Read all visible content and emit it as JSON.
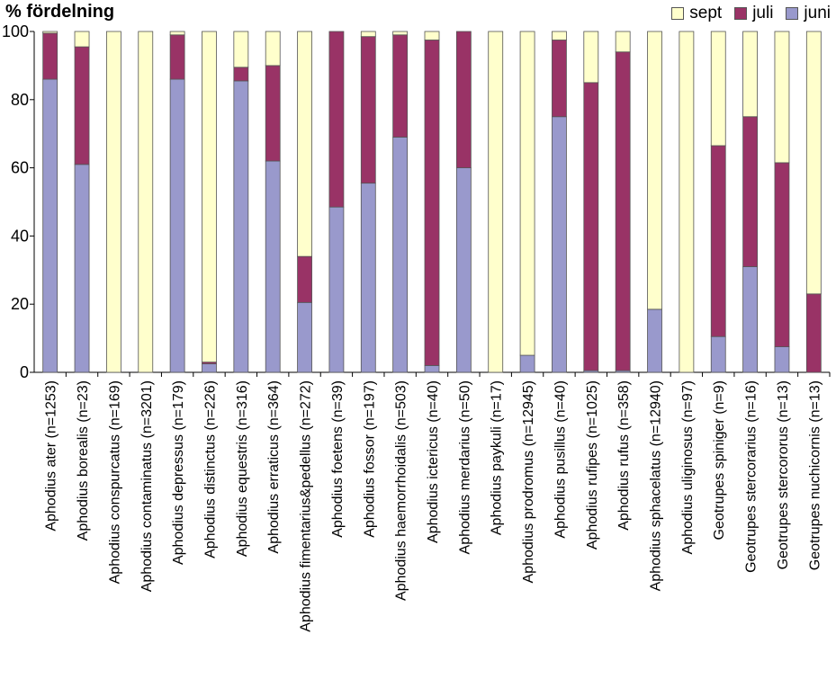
{
  "chart_data": {
    "type": "bar",
    "stacked": true,
    "ylabel": "% fördelning",
    "ylim": [
      0,
      100
    ],
    "yticks": [
      0,
      20,
      40,
      60,
      80,
      100
    ],
    "grid": false,
    "legend_position": "top-right",
    "categories": [
      "Aphodius ater (n=1253)",
      "Aphodius borealis (n=23)",
      "Aphodius conspurcatus (n=169)",
      "Aphodius contaminatus (n=3201)",
      "Aphodius depressus (n=179)",
      "Aphodius distinctus (n=226)",
      "Aphodius equestris (n=316)",
      "Aphodius erraticus (n=364)",
      "Aphodius fimentarius&pedellus (n=272)",
      "Aphodius foetens (n=39)",
      "Aphodius fossor (n=197)",
      "Aphodius haemorrhoidalis (n=503)",
      "Aphodius ictericus (n=40)",
      "Aphodius merdarius (n=50)",
      "Aphodius paykuli (n=17)",
      "Aphodius prodromus (n=12945)",
      "Aphodius pusillus (n=40)",
      "Aphodius rufipes (n=1025)",
      "Aphodius rufus (n=358)",
      "Aphodius sphacelatus (n=12940)",
      "Aphodius uliginosus (n=97)",
      "Geotrupes spiniger (n=9)",
      "Geotrupes stercorarius (n=16)",
      "Geotrupes  stercororus (n=13)",
      "Geotrupes nuchicornis (n=13)"
    ],
    "series": [
      {
        "name": "juni",
        "color": "#9999cc",
        "values": [
          86,
          61,
          0,
          0,
          86,
          2.5,
          85.5,
          62,
          20.5,
          48.5,
          55.5,
          69,
          2,
          60,
          0,
          5,
          75,
          0.5,
          0.5,
          18.5,
          0,
          10.5,
          31,
          7.5,
          0
        ]
      },
      {
        "name": "juli",
        "color": "#993366",
        "values": [
          13.5,
          34.5,
          0,
          0,
          13,
          0.5,
          4,
          28,
          13.5,
          51.5,
          43,
          30,
          95.5,
          40,
          0,
          0,
          22.5,
          84.5,
          93.5,
          0,
          0,
          56,
          44,
          54,
          23
        ]
      },
      {
        "name": "sept",
        "color": "#ffffcc",
        "values": [
          0.5,
          4.5,
          100,
          100,
          1,
          97,
          10.5,
          10,
          66,
          0,
          1.5,
          1,
          2.5,
          0,
          100,
          95,
          2.5,
          15,
          6,
          81.5,
          100,
          33.5,
          25,
          38.5,
          77
        ]
      }
    ]
  },
  "legend": {
    "items": [
      {
        "label": "sept",
        "color": "#ffffcc"
      },
      {
        "label": "juli",
        "color": "#993366"
      },
      {
        "label": "juni",
        "color": "#9999cc"
      }
    ]
  }
}
